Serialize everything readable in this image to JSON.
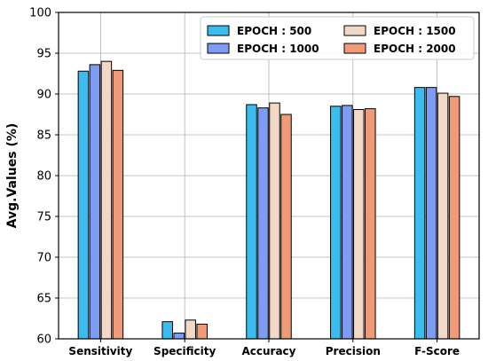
{
  "chart_data": {
    "type": "bar",
    "categories": [
      "Sensitivity",
      "Specificity",
      "Accuracy",
      "Precision",
      "F-Score"
    ],
    "series": [
      {
        "name": "EPOCH : 500",
        "color": "#3bbcee",
        "values": [
          92.8,
          62.1,
          88.7,
          88.5,
          90.8
        ]
      },
      {
        "name": "EPOCH : 1000",
        "color": "#7f9cf5",
        "values": [
          93.6,
          60.7,
          88.3,
          88.6,
          90.8
        ]
      },
      {
        "name": "EPOCH : 1500",
        "color": "#f2d8c6",
        "values": [
          94.0,
          62.3,
          88.9,
          88.1,
          90.1
        ]
      },
      {
        "name": "EPOCH : 2000",
        "color": "#f19a77",
        "values": [
          92.9,
          61.8,
          87.5,
          88.2,
          89.7
        ]
      }
    ],
    "xlabel": "",
    "ylabel": "Avg.Values (%)",
    "ylim": [
      60,
      100
    ],
    "yticks": [
      "60",
      "65",
      "70",
      "75",
      "80",
      "85",
      "90",
      "95",
      "100"
    ],
    "grid": true,
    "legend_position": "top-right",
    "legend_columns": 2
  }
}
